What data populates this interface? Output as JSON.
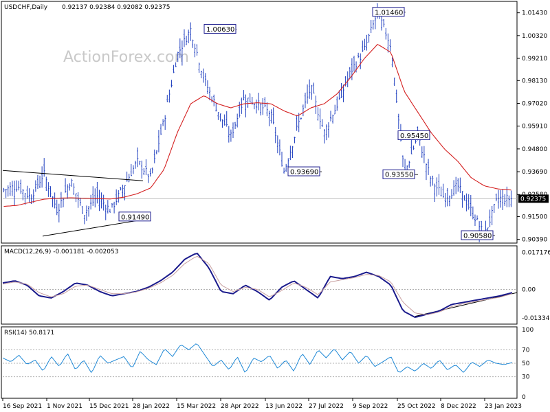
{
  "header": {
    "symbol": "USDCHF,Daily",
    "ohlc": "0.92137 0.92384 0.92082 0.92375",
    "watermark": "ActionForex.com"
  },
  "colors": {
    "candle": "#1f3fbf",
    "sma": "#d42020",
    "macd": "#1a1a8c",
    "signal": "#c8a0a0",
    "rsi": "#1e88d6",
    "trendline": "#000000",
    "grid": "#b0b0b0"
  },
  "chart_data": [
    {
      "type": "candlestick",
      "panel": "price",
      "title": "USDCHF,Daily",
      "ylim": [
        0.9028,
        1.0192
      ],
      "y_ticks": [
        "1.01430",
        "1.00320",
        "0.99210",
        "0.98130",
        "0.97020",
        "0.95910",
        "0.94800",
        "0.93690",
        "0.92580",
        "0.91500",
        "0.90390"
      ],
      "current_price_label": "0.92375",
      "x_ticks": [
        "16 Sep 2021",
        "1 Nov 2021",
        "15 Dec 2021",
        "28 Jan 2022",
        "15 Mar 2022",
        "28 Apr 2022",
        "13 Jun 2022",
        "27 Jul 2022",
        "9 Sep 2022",
        "25 Oct 2022",
        "8 Dec 2022",
        "23 Jan 2023"
      ],
      "series_keypoints": [
        {
          "name": "Close (approx.)",
          "values": [
            0.928,
            0.93,
            0.9245,
            0.936,
            0.918,
            0.933,
            0.9165,
            0.925,
            0.918,
            0.93,
            0.942,
            0.934,
            0.962,
            0.994,
            1.0063,
            0.982,
            0.967,
            0.954,
            0.973,
            0.97,
            0.965,
            0.9369,
            0.959,
            0.978,
            0.956,
            0.97,
            0.986,
            0.996,
            1.0146,
            0.998,
            0.9355,
            0.9545,
            0.933,
            0.924,
            0.93,
            0.918,
            0.9058,
            0.924,
            0.9237
          ]
        },
        {
          "name": "SMA (approx.)",
          "values": [
            0.92,
            0.9205,
            0.922,
            0.9235,
            0.924,
            0.9242,
            0.924,
            0.9238,
            0.9236,
            0.9245,
            0.9262,
            0.929,
            0.938,
            0.956,
            0.97,
            0.974,
            0.97,
            0.968,
            0.97,
            0.9705,
            0.97,
            0.9665,
            0.964,
            0.968,
            0.97,
            0.975,
            0.983,
            0.992,
            0.999,
            0.995,
            0.976,
            0.966,
            0.956,
            0.948,
            0.942,
            0.934,
            0.93,
            0.9285,
            0.928
          ]
        }
      ],
      "annotations": [
        {
          "text": "1.00630",
          "value": 1.0063
        },
        {
          "text": "1.01460",
          "value": 1.0146
        },
        {
          "text": "0.95450",
          "value": 0.9545
        },
        {
          "text": "0.93690",
          "value": 0.9369
        },
        {
          "text": "0.93550",
          "value": 0.9355
        },
        {
          "text": "0.91490",
          "value": 0.9149
        },
        {
          "text": "0.90580",
          "value": 0.9058
        }
      ]
    },
    {
      "type": "line",
      "panel": "macd",
      "title": "MACD(12,26,9) -0.001181 -0.002053",
      "ylim": [
        -0.0155,
        0.019
      ],
      "y_ticks": [
        "0.017176",
        "0.00",
        "-0.01334"
      ],
      "series": [
        {
          "name": "MACD",
          "values": [
            0.003,
            0.004,
            0.002,
            -0.003,
            -0.004,
            -0.001,
            0.003,
            0.002,
            -0.001,
            -0.003,
            -0.002,
            -0.001,
            0.001,
            0.004,
            0.008,
            0.014,
            0.017,
            0.01,
            -0.001,
            -0.002,
            0.002,
            -0.001,
            -0.005,
            0.001,
            0.004,
            0.0,
            -0.004,
            0.006,
            0.005,
            0.006,
            0.008,
            0.006,
            0.002,
            -0.01,
            -0.013,
            -0.0115,
            -0.01,
            -0.007,
            -0.006,
            -0.005,
            -0.004,
            -0.003,
            -0.0015
          ]
        },
        {
          "name": "Signal",
          "values": [
            0.0025,
            0.0035,
            0.0025,
            -0.0015,
            -0.0035,
            -0.002,
            0.0015,
            0.002,
            0.0,
            -0.002,
            -0.002,
            -0.0012,
            0.0005,
            0.003,
            0.0065,
            0.012,
            0.0155,
            0.012,
            0.002,
            -0.001,
            0.001,
            0.0,
            -0.0035,
            -0.0005,
            0.003,
            0.001,
            -0.0025,
            0.0035,
            0.0045,
            0.0055,
            0.007,
            0.0065,
            0.0035,
            -0.006,
            -0.011,
            -0.0118,
            -0.0105,
            -0.008,
            -0.0066,
            -0.0056,
            -0.0046,
            -0.0036,
            -0.002
          ]
        }
      ]
    },
    {
      "type": "line",
      "panel": "rsi",
      "title": "RSI(14) 50.8171",
      "ylim": [
        0,
        100
      ],
      "y_ticks": [
        "100",
        "70",
        "50",
        "30",
        "0"
      ],
      "series": [
        {
          "name": "RSI",
          "values": [
            58,
            52,
            62,
            48,
            55,
            38,
            60,
            45,
            65,
            40,
            55,
            35,
            62,
            50,
            55,
            60,
            42,
            68,
            55,
            48,
            72,
            60,
            78,
            70,
            80,
            62,
            45,
            55,
            40,
            60,
            35,
            58,
            52,
            62,
            42,
            55,
            38,
            65,
            48,
            70,
            58,
            72,
            55,
            68,
            50,
            62,
            45,
            52,
            60,
            35,
            45,
            38,
            50,
            42,
            55,
            40,
            48,
            36,
            52,
            45,
            55,
            50,
            48,
            51
          ]
        }
      ]
    }
  ]
}
